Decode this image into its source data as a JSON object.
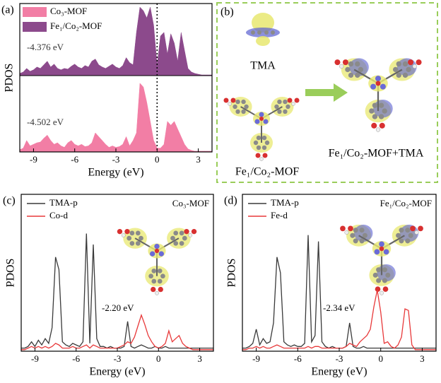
{
  "chart_data": [
    {
      "type": "area",
      "panel_label": "(a)",
      "x_label": "Energy (eV)",
      "y_label": "PDOS",
      "x": [
        -10,
        -9.75,
        -9.5,
        -9.25,
        -9,
        -8.75,
        -8.5,
        -8.25,
        -8,
        -7.75,
        -7.5,
        -7.25,
        -7,
        -6.75,
        -6.5,
        -6.25,
        -6,
        -5.75,
        -5.5,
        -5.25,
        -5,
        -4.75,
        -4.5,
        -4.25,
        -4,
        -3.75,
        -3.5,
        -3.25,
        -3,
        -2.75,
        -2.5,
        -2.25,
        -2,
        -1.75,
        -1.5,
        -1.25,
        -1,
        -0.75,
        -0.5,
        -0.25,
        0,
        0.25,
        0.5,
        0.75,
        1,
        1.25,
        1.5,
        1.75,
        2,
        2.25,
        2.5,
        2.75,
        3,
        3.25,
        3.5,
        3.75,
        4
      ],
      "xlim": [
        -10,
        4
      ],
      "xticks": [
        -9,
        -6,
        -3,
        0,
        3
      ],
      "ylim": [
        0,
        10
      ],
      "reference_line": 0,
      "series": [
        {
          "name": "Co₃-MOF",
          "color": "#f27ea5",
          "annotation": "-4.502 eV",
          "values": [
            0.3,
            0.5,
            1.5,
            0.8,
            1.0,
            1.2,
            1.3,
            1.8,
            2.2,
            1.5,
            1.0,
            1.2,
            0.8,
            0.6,
            1.2,
            1.5,
            1.0,
            0.8,
            1.0,
            0.7,
            0.8,
            1.2,
            2.5,
            2.0,
            1.5,
            1.0,
            0.6,
            0.8,
            0.6,
            0.7,
            1.0,
            2.0,
            0.8,
            1.5,
            2.5,
            9.0,
            8.5,
            6.5,
            4.0,
            1.5,
            0.5,
            0.5,
            1.0,
            4.0,
            3.5,
            4.0,
            3.0,
            2.0,
            1.0,
            0.4,
            0.2,
            0.1,
            0.1,
            0.1,
            0.1,
            0.1,
            0.1
          ]
        },
        {
          "name": "Fe₁/Co₂-MOF",
          "color": "#8c4a8c",
          "annotation": "-4.376 eV",
          "values": [
            0.3,
            0.5,
            1.0,
            0.6,
            0.8,
            1.2,
            1.0,
            1.5,
            2.0,
            1.2,
            1.6,
            1.0,
            0.8,
            1.0,
            0.9,
            1.3,
            1.6,
            1.2,
            1.0,
            1.4,
            1.2,
            2.0,
            2.3,
            1.5,
            1.2,
            1.0,
            1.3,
            1.6,
            1.2,
            1.0,
            1.4,
            2.5,
            1.8,
            1.5,
            6.0,
            9.5,
            9.0,
            8.0,
            9.5,
            7.0,
            1.5,
            5.5,
            6.0,
            3.0,
            5.8,
            4.5,
            2.0,
            6.0,
            3.5,
            1.0,
            0.5,
            0.3,
            0.2,
            0.1,
            0.1,
            0.1,
            0.1
          ]
        }
      ]
    },
    {
      "type": "line",
      "panel_label": "(c)",
      "x_label": "Energy (eV)",
      "y_label": "PDOS",
      "inset_label": "Co₃-MOF",
      "annotation": "-2.20 eV",
      "x": [
        -10,
        -9.75,
        -9.5,
        -9.25,
        -9,
        -8.75,
        -8.5,
        -8.25,
        -8,
        -7.75,
        -7.5,
        -7.25,
        -7,
        -6.75,
        -6.5,
        -6.25,
        -6,
        -5.75,
        -5.5,
        -5.25,
        -5,
        -4.75,
        -4.5,
        -4.25,
        -4,
        -3.75,
        -3.5,
        -3.25,
        -3,
        -2.75,
        -2.5,
        -2.25,
        -2,
        -1.75,
        -1.5,
        -1.25,
        -1,
        -0.75,
        -0.5,
        -0.25,
        0,
        0.25,
        0.5,
        0.75,
        1,
        1.25,
        1.5,
        1.75,
        2,
        2.25,
        2.5,
        2.75,
        3,
        3.25,
        3.5,
        3.75,
        4
      ],
      "xlim": [
        -10,
        4
      ],
      "xticks": [
        -9,
        -6,
        -3,
        0,
        3
      ],
      "ylim": [
        0,
        10
      ],
      "series": [
        {
          "name": "TMA-p",
          "color": "#3a3a3a",
          "values": [
            0.2,
            0.2,
            0.3,
            0.6,
            0.3,
            0.7,
            0.4,
            0.8,
            0.5,
            1.5,
            6.0,
            5.2,
            0.6,
            0.4,
            0.3,
            0.5,
            0.4,
            0.3,
            0.6,
            7.5,
            0.5,
            6.8,
            0.8,
            0.3,
            0.3,
            0.2,
            0.3,
            0.2,
            0.2,
            0.2,
            0.3,
            1.9,
            0.3,
            0.2,
            0.3,
            0.4,
            0.3,
            0.2,
            0.2,
            0.3,
            0.2,
            0.2,
            0.3,
            0.2,
            0.2,
            0.2,
            0.2,
            0.2,
            0.2,
            0.2,
            0.2,
            0.2,
            0.2,
            0.2,
            0.2,
            0.2,
            0.2
          ]
        },
        {
          "name": "Co-d",
          "color": "#e8393a",
          "values": [
            0.1,
            0.1,
            0.2,
            0.3,
            0.2,
            0.3,
            0.2,
            0.3,
            0.2,
            0.3,
            0.5,
            0.4,
            0.2,
            0.2,
            0.2,
            0.3,
            0.2,
            0.2,
            0.3,
            0.4,
            0.2,
            0.4,
            0.3,
            0.2,
            0.2,
            0.2,
            0.2,
            0.2,
            0.2,
            0.3,
            0.4,
            0.6,
            0.5,
            0.9,
            1.6,
            2.3,
            1.7,
            1.0,
            0.6,
            0.3,
            0.2,
            0.3,
            0.5,
            1.3,
            0.6,
            0.8,
            1.0,
            0.5,
            0.3,
            0.2,
            0.1,
            0.1,
            0.1,
            0.1,
            0.1,
            0.1,
            0.1
          ]
        }
      ]
    },
    {
      "type": "line",
      "panel_label": "(d)",
      "x_label": "Energy (eV)",
      "y_label": "PDOS",
      "inset_label": "Fe₁/Co₂-MOF",
      "annotation": "-2.34 eV",
      "x": [
        -10,
        -9.75,
        -9.5,
        -9.25,
        -9,
        -8.75,
        -8.5,
        -8.25,
        -8,
        -7.75,
        -7.5,
        -7.25,
        -7,
        -6.75,
        -6.5,
        -6.25,
        -6,
        -5.75,
        -5.5,
        -5.25,
        -5,
        -4.75,
        -4.5,
        -4.25,
        -4,
        -3.75,
        -3.5,
        -3.25,
        -3,
        -2.75,
        -2.5,
        -2.25,
        -2,
        -1.75,
        -1.5,
        -1.25,
        -1,
        -0.75,
        -0.5,
        -0.25,
        0,
        0.25,
        0.5,
        0.75,
        1,
        1.25,
        1.5,
        1.75,
        2,
        2.25,
        2.5,
        2.75,
        3,
        3.25,
        3.5,
        3.75,
        4
      ],
      "xlim": [
        -10,
        4
      ],
      "xticks": [
        -9,
        -6,
        -3,
        0,
        3
      ],
      "ylim": [
        0,
        10
      ],
      "series": [
        {
          "name": "TMA-p",
          "color": "#3a3a3a",
          "values": [
            0.2,
            0.2,
            0.3,
            0.5,
            1.4,
            0.4,
            0.8,
            0.5,
            0.6,
            1.8,
            6.0,
            5.0,
            0.6,
            0.4,
            0.3,
            0.4,
            0.3,
            0.3,
            0.5,
            7.4,
            0.6,
            1.0,
            7.0,
            0.6,
            0.3,
            0.2,
            0.3,
            0.2,
            0.2,
            0.2,
            0.3,
            1.8,
            0.3,
            0.2,
            0.2,
            0.3,
            0.2,
            0.2,
            0.2,
            0.2,
            0.2,
            0.2,
            0.2,
            0.2,
            0.2,
            0.2,
            0.2,
            0.2,
            0.2,
            0.2,
            0.2,
            0.2,
            0.2,
            0.2,
            0.2,
            0.2,
            0.2
          ]
        },
        {
          "name": "Fe-d",
          "color": "#e8393a",
          "values": [
            0.1,
            0.1,
            0.2,
            0.2,
            0.3,
            0.2,
            0.3,
            0.2,
            0.2,
            0.3,
            0.4,
            0.3,
            0.2,
            0.2,
            0.2,
            0.2,
            0.2,
            0.2,
            0.2,
            0.3,
            0.2,
            0.3,
            0.3,
            0.2,
            0.2,
            0.2,
            0.2,
            0.2,
            0.2,
            0.2,
            0.3,
            0.5,
            0.4,
            0.3,
            0.6,
            0.8,
            1.0,
            1.4,
            2.8,
            3.9,
            2.5,
            0.5,
            0.6,
            0.3,
            0.2,
            0.4,
            0.9,
            2.7,
            2.6,
            0.4,
            0.1,
            0.1,
            0.1,
            0.1,
            0.1,
            0.1,
            0.1
          ]
        }
      ]
    }
  ],
  "diagram": {
    "panel_label": "(b)",
    "molecule_labels": [
      "TMA",
      "Fe₁/Co₂-MOF",
      "Fe₁/Co₂-MOF+TMA"
    ]
  }
}
